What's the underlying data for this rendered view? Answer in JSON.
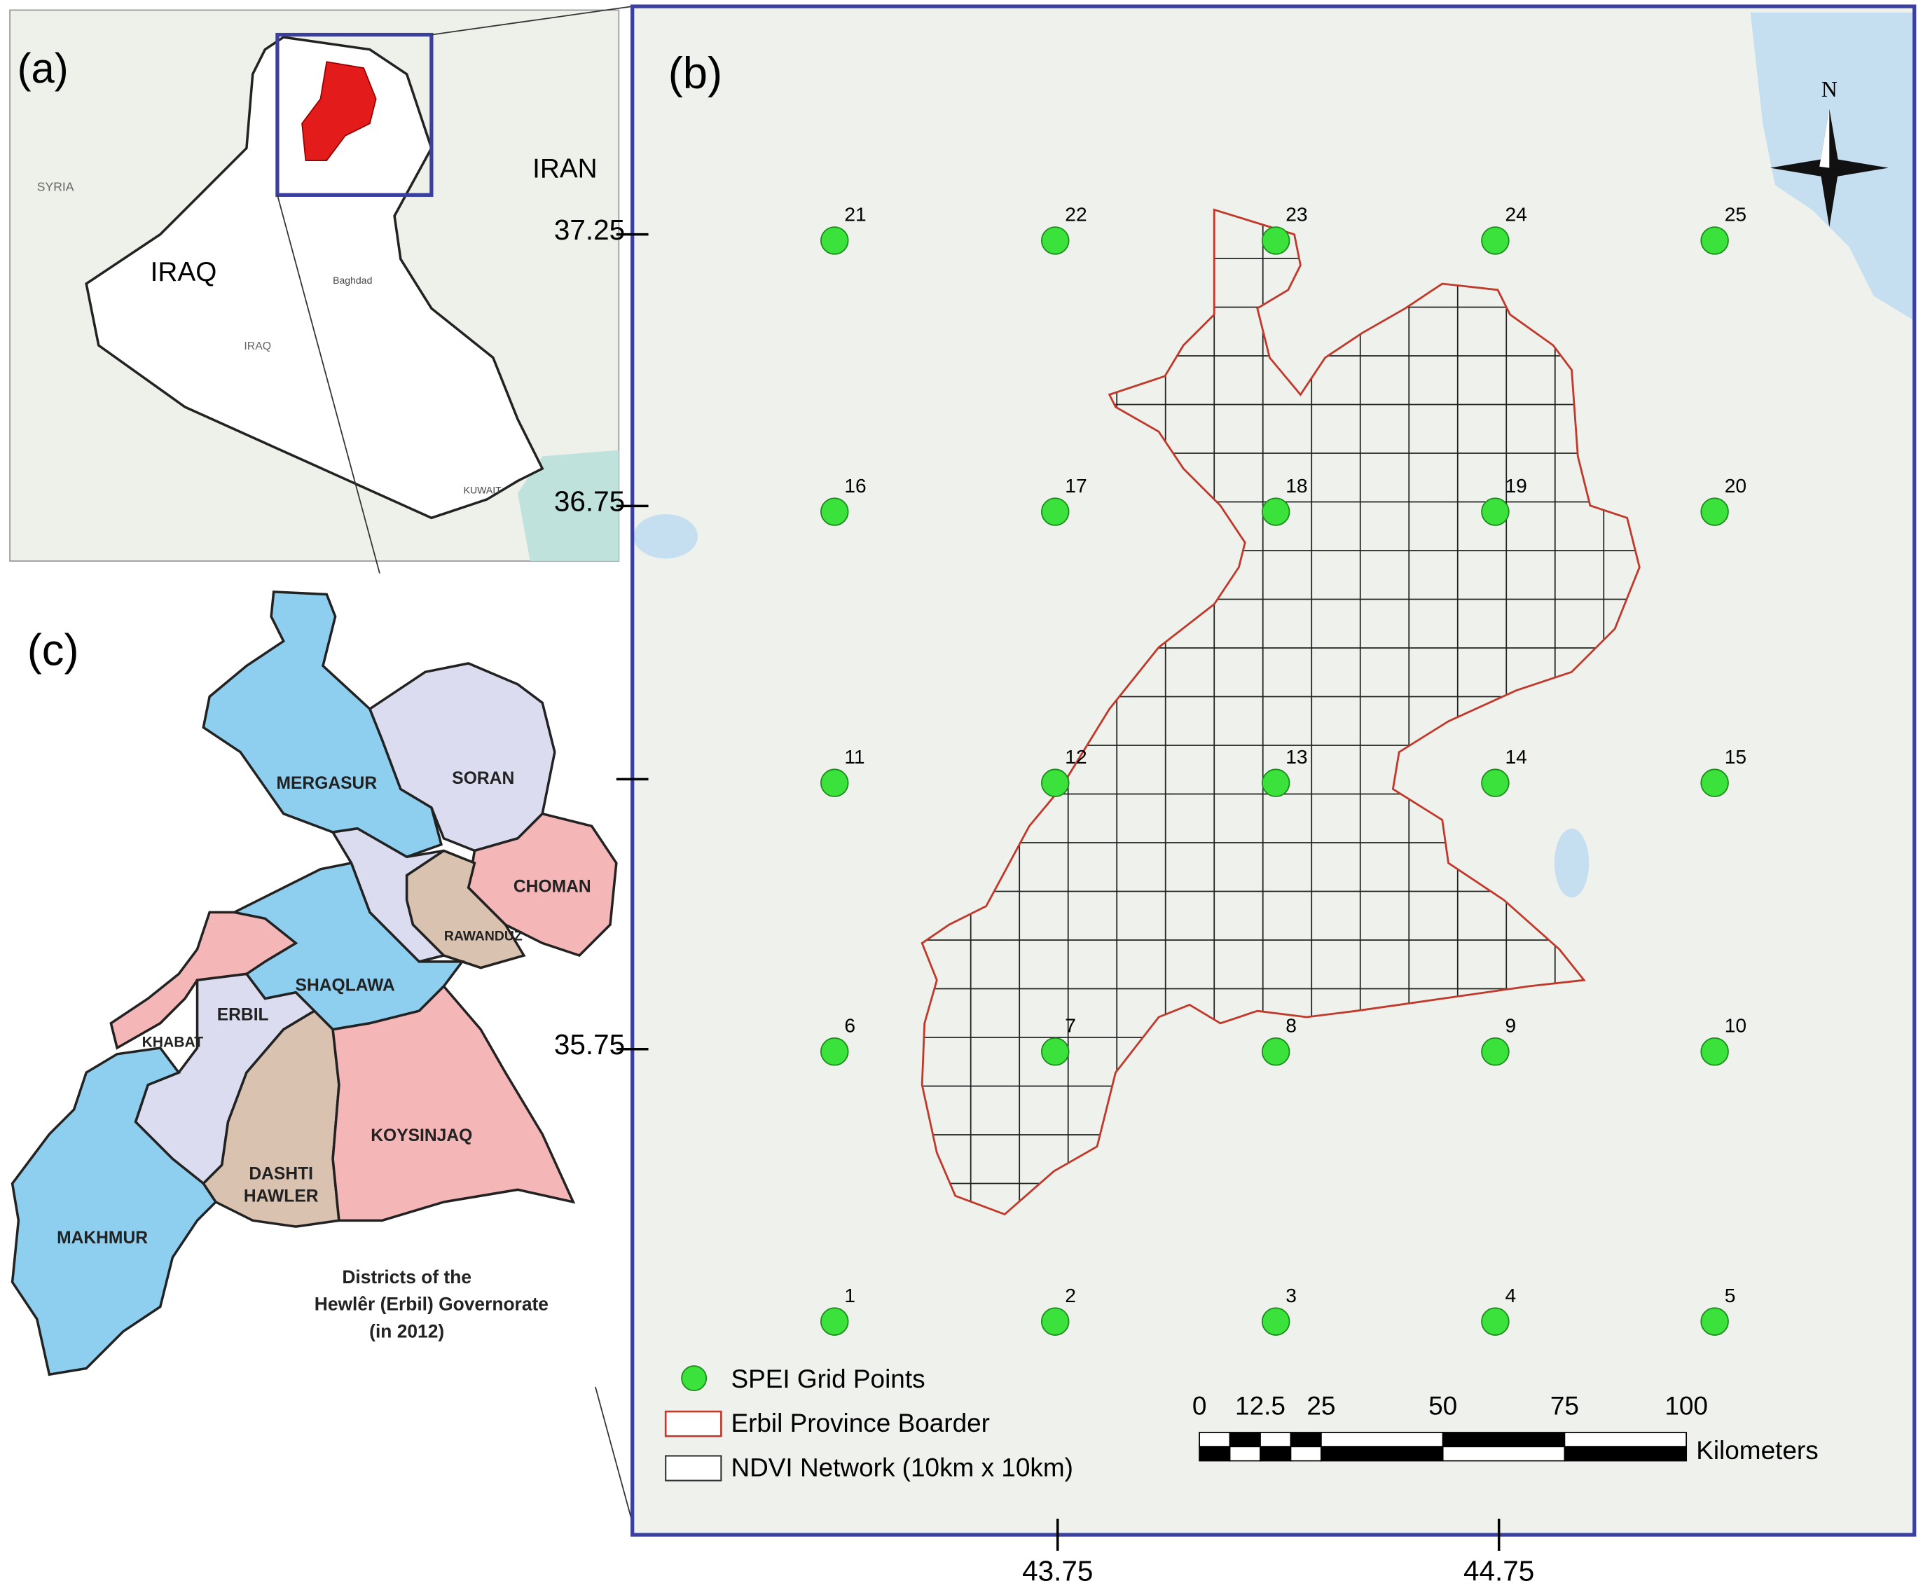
{
  "panel_a": {
    "label": "(a)",
    "places": [
      "SYRIA",
      "IRAQ",
      "IRAN",
      "IRAQ",
      "Baghdad",
      "KUWAIT"
    ]
  },
  "panel_b": {
    "label": "(b)",
    "north": "N",
    "lat_ticks": [
      37.25,
      36.75,
      35.75
    ],
    "lon_ticks": [
      43.75,
      44.75
    ],
    "grid_points": [
      "1",
      "2",
      "3",
      "4",
      "5",
      "6",
      "7",
      "8",
      "9",
      "10",
      "11",
      "12",
      "13",
      "14",
      "15",
      "16",
      "17",
      "18",
      "19",
      "20",
      "21",
      "22",
      "23",
      "24",
      "25"
    ],
    "legend": [
      "SPEI Grid Points",
      "Erbil Province Boarder",
      "NDVI Network (10km x 10km)"
    ],
    "scale_bar": {
      "ticks": [
        0,
        12.5,
        25,
        50,
        75,
        100
      ],
      "unit": "Kilometers"
    }
  },
  "panel_c": {
    "label": "(c)",
    "districts": [
      [
        "MERGASUR"
      ],
      [
        "SORAN"
      ],
      [
        "CHOMAN"
      ],
      [
        "RAWANDUZ"
      ],
      [
        "SHAQLAWA"
      ],
      [
        "KHABAT"
      ],
      [
        "ERBIL"
      ],
      [
        "DASHTI",
        "HAWLER"
      ],
      [
        "KOYSINJAQ"
      ],
      [
        "MAKHMUR"
      ]
    ],
    "caption": [
      "Districts of the",
      "Hewlêr (Erbil) Governorate",
      "(in 2012)"
    ]
  }
}
